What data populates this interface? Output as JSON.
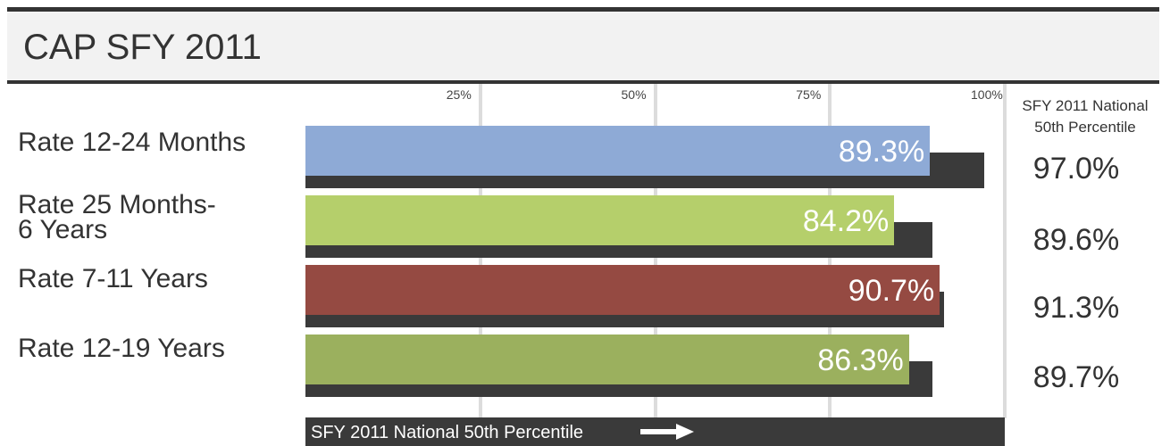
{
  "title": "CAP  SFY 2011",
  "national_header": "SFY 2011 National\n50th Percentile",
  "footer_label": "SFY 2011 National 50th Percentile",
  "chart_data": {
    "type": "bar",
    "orientation": "horizontal",
    "xlim": [
      0,
      100
    ],
    "ticks": [
      "25%",
      "50%",
      "75%",
      "100%"
    ],
    "tick_values": [
      25,
      50,
      75,
      100
    ],
    "categories": [
      "Rate 12-24 Months",
      "Rate 25 Months-\n6 Years",
      "Rate 7-11 Years",
      "Rate 12-19 Years"
    ],
    "series": [
      {
        "values": [
          89.3,
          84.2,
          90.7,
          86.3
        ],
        "labels": [
          "89.3%",
          "84.2%",
          "90.7%",
          "86.3%"
        ],
        "colors": [
          "#8eaad6",
          "#b5cf6b",
          "#954a42",
          "#9bb05e"
        ]
      },
      {
        "name": "SFY 2011 National 50th Percentile",
        "values": [
          97.0,
          89.6,
          91.3,
          89.7
        ],
        "labels": [
          "97.0%",
          "89.6%",
          "91.3%",
          "89.7%"
        ],
        "color": "#3a3a3a"
      }
    ]
  }
}
